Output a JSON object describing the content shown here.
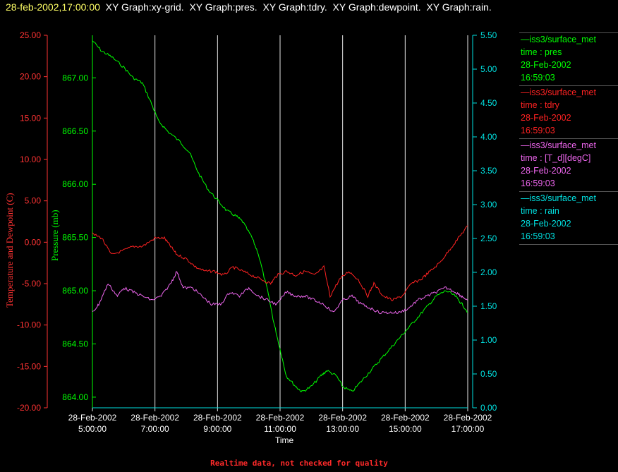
{
  "header": {
    "timestamp": "28-feb-2002,17:00:00",
    "titles": "XY Graph:xy-grid.  XY Graph:pres.  XY Graph:tdry.  XY Graph:dewpoint.  XY Graph:rain."
  },
  "footer": "Realtime data, not checked for quality",
  "colors": {
    "pres": "#00ff00",
    "tdry": "#ff2222",
    "dewpoint": "#ee66ee",
    "rain": "#00e0e0",
    "grid": "#e8e8e8",
    "tick_left": "#ff3333"
  },
  "legend": [
    {
      "key": "pres",
      "lines": [
        "—iss3/surface_met",
        "time : pres",
        "28-Feb-2002",
        "16:59:03"
      ]
    },
    {
      "key": "tdry",
      "lines": [
        "—iss3/surface_met",
        "time : tdry",
        "28-Feb-2002",
        "16:59:03"
      ]
    },
    {
      "key": "dewpoint",
      "lines": [
        "—iss3/surface_met",
        "time : [T_d][degC]",
        "28-Feb-2002",
        "16:59:03"
      ]
    },
    {
      "key": "rain",
      "lines": [
        "—iss3/surface_met",
        "time : rain",
        "28-Feb-2002",
        "16:59:03"
      ]
    }
  ],
  "chart_data": {
    "type": "line",
    "xlabel": "Time",
    "x_ticks": [
      {
        "hour": 5,
        "date": "28-Feb-2002",
        "time": "5:00:00"
      },
      {
        "hour": 7,
        "date": "28-Feb-2002",
        "time": "7:00:00"
      },
      {
        "hour": 9,
        "date": "28-Feb-2002",
        "time": "9:00:00"
      },
      {
        "hour": 11,
        "date": "28-Feb-2002",
        "time": "11:00:00"
      },
      {
        "hour": 13,
        "date": "28-Feb-2002",
        "time": "13:00:00"
      },
      {
        "hour": 15,
        "date": "28-Feb-2002",
        "time": "15:00:00"
      },
      {
        "hour": 17,
        "date": "28-Feb-2002",
        "time": "17:00:00"
      }
    ],
    "x_range_hours": [
      5,
      17
    ],
    "axes": {
      "temp": {
        "label": "Temperature and Dewpoint (C)",
        "range": [
          -20,
          25
        ],
        "ticks": [
          "25.00",
          "20.00",
          "15.00",
          "10.00",
          "5.00",
          "0.00",
          "-5.00",
          "-10.00",
          "-15.00",
          "-20.00"
        ]
      },
      "pres": {
        "label": "Pressure (mb)",
        "range": [
          863.9,
          867.4
        ],
        "ticks": [
          "867.00",
          "866.50",
          "866.00",
          "865.50",
          "865.00",
          "864.50",
          "864.00"
        ]
      },
      "rain": {
        "label": "",
        "range": [
          0,
          5.5
        ],
        "ticks": [
          "5.50",
          "5.00",
          "4.50",
          "4.00",
          "3.50",
          "3.00",
          "2.50",
          "2.00",
          "1.50",
          "1.00",
          "0.50",
          "0.00"
        ]
      }
    },
    "series": [
      {
        "key": "pres",
        "axis": "pres",
        "points": [
          [
            5.0,
            867.35
          ],
          [
            5.3,
            867.25
          ],
          [
            5.6,
            867.2
          ],
          [
            6.0,
            867.1
          ],
          [
            6.3,
            867.0
          ],
          [
            6.6,
            866.95
          ],
          [
            6.9,
            866.75
          ],
          [
            7.1,
            866.6
          ],
          [
            7.4,
            866.5
          ],
          [
            7.8,
            866.4
          ],
          [
            8.1,
            866.3
          ],
          [
            8.4,
            866.1
          ],
          [
            8.7,
            865.95
          ],
          [
            9.0,
            865.85
          ],
          [
            9.3,
            865.75
          ],
          [
            9.6,
            865.7
          ],
          [
            9.8,
            865.65
          ],
          [
            10.1,
            865.5
          ],
          [
            10.3,
            865.35
          ],
          [
            10.6,
            865.0
          ],
          [
            10.8,
            864.7
          ],
          [
            11.0,
            864.45
          ],
          [
            11.2,
            864.2
          ],
          [
            11.5,
            864.1
          ],
          [
            11.7,
            864.05
          ],
          [
            12.0,
            864.1
          ],
          [
            12.3,
            864.2
          ],
          [
            12.5,
            864.25
          ],
          [
            12.8,
            864.2
          ],
          [
            13.0,
            864.1
          ],
          [
            13.3,
            864.05
          ],
          [
            13.6,
            864.15
          ],
          [
            13.9,
            864.25
          ],
          [
            14.2,
            864.35
          ],
          [
            14.5,
            864.45
          ],
          [
            14.8,
            864.55
          ],
          [
            15.1,
            864.65
          ],
          [
            15.4,
            864.75
          ],
          [
            15.7,
            864.85
          ],
          [
            16.0,
            864.95
          ],
          [
            16.3,
            865.0
          ],
          [
            16.6,
            864.95
          ],
          [
            16.8,
            864.88
          ],
          [
            17.0,
            864.8
          ]
        ]
      },
      {
        "key": "tdry",
        "axis": "temp",
        "points": [
          [
            5.0,
            1.0
          ],
          [
            5.3,
            0.5
          ],
          [
            5.6,
            -1.5
          ],
          [
            6.0,
            -1.0
          ],
          [
            6.3,
            -0.5
          ],
          [
            6.6,
            -0.5
          ],
          [
            7.0,
            0.5
          ],
          [
            7.3,
            0.5
          ],
          [
            7.5,
            -0.5
          ],
          [
            7.7,
            -1.5
          ],
          [
            8.0,
            -2.0
          ],
          [
            8.3,
            -3.0
          ],
          [
            8.6,
            -3.5
          ],
          [
            8.9,
            -3.5
          ],
          [
            9.2,
            -4.0
          ],
          [
            9.5,
            -3.0
          ],
          [
            9.8,
            -3.5
          ],
          [
            10.1,
            -4.0
          ],
          [
            10.4,
            -4.5
          ],
          [
            10.7,
            -5.0
          ],
          [
            10.9,
            -4.0
          ],
          [
            11.2,
            -3.5
          ],
          [
            11.5,
            -4.0
          ],
          [
            11.8,
            -3.5
          ],
          [
            12.1,
            -4.0
          ],
          [
            12.4,
            -3.0
          ],
          [
            12.6,
            -6.5
          ],
          [
            12.9,
            -4.5
          ],
          [
            13.2,
            -3.5
          ],
          [
            13.5,
            -4.5
          ],
          [
            13.8,
            -6.5
          ],
          [
            14.0,
            -5.0
          ],
          [
            14.3,
            -6.5
          ],
          [
            14.6,
            -7.0
          ],
          [
            14.9,
            -6.5
          ],
          [
            15.2,
            -5.0
          ],
          [
            15.5,
            -4.5
          ],
          [
            15.8,
            -3.5
          ],
          [
            16.1,
            -2.5
          ],
          [
            16.4,
            -1.0
          ],
          [
            16.7,
            0.5
          ],
          [
            17.0,
            2.0
          ]
        ]
      },
      {
        "key": "dewpoint",
        "axis": "temp",
        "points": [
          [
            5.0,
            -8.5
          ],
          [
            5.2,
            -7.5
          ],
          [
            5.5,
            -5.0
          ],
          [
            5.8,
            -6.5
          ],
          [
            6.0,
            -5.5
          ],
          [
            6.3,
            -6.0
          ],
          [
            6.6,
            -6.5
          ],
          [
            6.9,
            -7.0
          ],
          [
            7.2,
            -6.5
          ],
          [
            7.5,
            -5.0
          ],
          [
            7.7,
            -3.5
          ],
          [
            7.9,
            -5.5
          ],
          [
            8.2,
            -5.5
          ],
          [
            8.5,
            -6.5
          ],
          [
            8.8,
            -7.5
          ],
          [
            9.1,
            -7.5
          ],
          [
            9.4,
            -6.0
          ],
          [
            9.7,
            -6.5
          ],
          [
            10.0,
            -5.5
          ],
          [
            10.3,
            -6.5
          ],
          [
            10.6,
            -7.0
          ],
          [
            10.9,
            -7.5
          ],
          [
            11.2,
            -6.0
          ],
          [
            11.5,
            -6.5
          ],
          [
            11.8,
            -6.5
          ],
          [
            12.1,
            -7.0
          ],
          [
            12.4,
            -7.5
          ],
          [
            12.7,
            -8.5
          ],
          [
            13.0,
            -7.0
          ],
          [
            13.3,
            -6.5
          ],
          [
            13.6,
            -7.5
          ],
          [
            13.9,
            -8.0
          ],
          [
            14.2,
            -8.5
          ],
          [
            14.5,
            -8.5
          ],
          [
            14.8,
            -8.5
          ],
          [
            15.1,
            -8.0
          ],
          [
            15.4,
            -7.0
          ],
          [
            15.7,
            -6.5
          ],
          [
            16.0,
            -6.0
          ],
          [
            16.3,
            -5.5
          ],
          [
            16.6,
            -6.0
          ],
          [
            16.8,
            -6.5
          ],
          [
            17.0,
            -7.0
          ]
        ]
      },
      {
        "key": "rain",
        "axis": "rain",
        "points": [
          [
            5.0,
            0.0
          ],
          [
            17.0,
            0.0
          ]
        ]
      }
    ]
  }
}
